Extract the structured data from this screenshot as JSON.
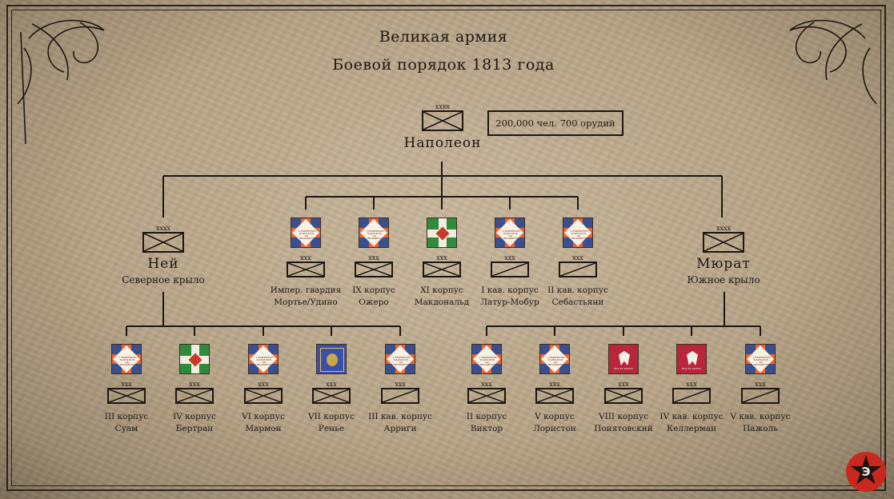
{
  "header": {
    "title": "Великая армия",
    "subtitle": "Боевой порядок 1813 года"
  },
  "army_strength": "200,000 чел. 700 орудий",
  "echelons": {
    "army": "xxxx",
    "corps": "xxx"
  },
  "commander": {
    "name": "Наполеон"
  },
  "wings": [
    {
      "name": "Ней",
      "label": "Северное крыло"
    },
    {
      "name": "Мюрат",
      "label": "Южное крыло"
    }
  ],
  "reserve_corps": [
    {
      "name": "Импер. гвардия",
      "commander": "Мортье/Удино",
      "flag": "french",
      "type": "infantry"
    },
    {
      "name": "IX корпус",
      "commander": "Ожеро",
      "flag": "french",
      "type": "infantry"
    },
    {
      "name": "XI корпус",
      "commander": "Макдональд",
      "flag": "italian",
      "type": "infantry"
    },
    {
      "name": "I кав. корпус",
      "commander": "Латур-Мобур",
      "flag": "french",
      "type": "cavalry"
    },
    {
      "name": "II кав. корпус",
      "commander": "Себастьяни",
      "flag": "french",
      "type": "cavalry"
    }
  ],
  "north_corps": [
    {
      "name": "III корпус",
      "commander": "Суам",
      "flag": "french",
      "type": "infantry"
    },
    {
      "name": "IV корпус",
      "commander": "Бертран",
      "flag": "italian",
      "type": "infantry"
    },
    {
      "name": "VI корпус",
      "commander": "Мармон",
      "flag": "french",
      "type": "infantry"
    },
    {
      "name": "VII корпус",
      "commander": "Ренье",
      "flag": "saxon",
      "type": "infantry"
    },
    {
      "name": "III кав. корпус",
      "commander": "Арриги",
      "flag": "french",
      "type": "cavalry"
    }
  ],
  "south_corps": [
    {
      "name": "II корпус",
      "commander": "Виктор",
      "flag": "french",
      "type": "infantry"
    },
    {
      "name": "V корпус",
      "commander": "Лористон",
      "flag": "french",
      "type": "infantry"
    },
    {
      "name": "VIII корпус",
      "commander": "Понятовский",
      "flag": "polish",
      "type": "infantry"
    },
    {
      "name": "IV кав. корпус",
      "commander": "Келлерман",
      "flag": "polish",
      "type": "cavalry"
    },
    {
      "name": "V кав. корпус",
      "commander": "Пажоль",
      "flag": "french",
      "type": "cavalry"
    }
  ],
  "flag_text": {
    "french": "L'EMPEREUR NAPOLEON AU REGIMENT",
    "polish": "REX ET PATRIA"
  },
  "colors": {
    "paper": "#b8a587",
    "ink": "#1c1712",
    "french_orange": "#e8663a",
    "french_blue": "#3b4f8c",
    "italian_green": "#2f8a3c",
    "saxon_blue": "#3b4fa8",
    "polish_red": "#b8263b",
    "logo_red": "#c8281e"
  },
  "logo": {
    "icon": "star-icon",
    "letter": "Э"
  }
}
